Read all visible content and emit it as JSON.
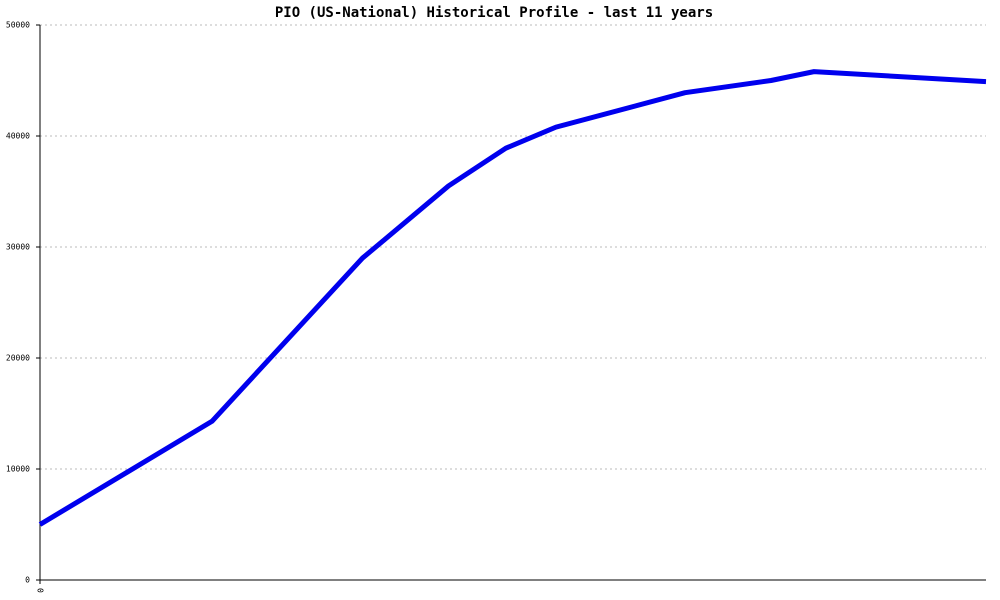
{
  "chart_data": {
    "type": "line",
    "title": "PIO (US-National) Historical Profile - last 11 years",
    "x": [
      0,
      24,
      45,
      57,
      65,
      72,
      90,
      102,
      108,
      132
    ],
    "series": [
      {
        "color": "#0000ee",
        "values": [
          5000,
          14300,
          29000,
          35500,
          38900,
          40800,
          43900,
          45000,
          45800,
          44900
        ]
      }
    ],
    "xlim": [
      0,
      132
    ],
    "xticks": [
      0
    ],
    "ylim": [
      0,
      50000
    ],
    "yticks": [
      0,
      10000,
      20000,
      30000,
      40000,
      50000
    ],
    "grid": true
  }
}
